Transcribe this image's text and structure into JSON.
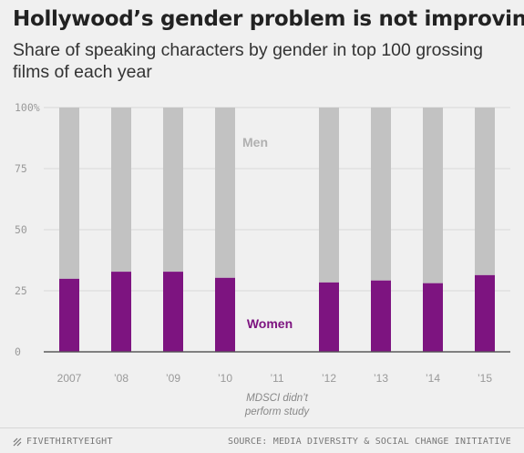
{
  "title": "Hollywood’s gender problem is not improving",
  "subtitle": "Share of speaking characters by gender in top 100 grossing films of each year",
  "footer": {
    "brand": "FIVETHIRTYEIGHT",
    "source": "SOURCE: MEDIA DIVERSITY & SOCIAL CHANGE INITIATIVE"
  },
  "colors": {
    "women": "#7d1480",
    "men": "#c2c2c2",
    "grid": "#d8d8d8",
    "tick_text": "#999999",
    "men_label": "#b0b0b0"
  },
  "chart_data": {
    "type": "bar",
    "stacked": true,
    "categories": [
      "2007",
      "’08",
      "’09",
      "’10",
      "’11",
      "’12",
      "’13",
      "’14",
      "’15"
    ],
    "series": [
      {
        "name": "Women",
        "values": [
          29.9,
          32.8,
          32.8,
          30.3,
          null,
          28.4,
          29.2,
          28.1,
          31.4
        ]
      },
      {
        "name": "Men",
        "values": [
          70.1,
          67.2,
          67.2,
          69.7,
          null,
          71.6,
          70.8,
          71.9,
          68.6
        ]
      }
    ],
    "ylim": [
      0,
      100
    ],
    "yticks": [
      "0",
      "25",
      "50",
      "75",
      "100%"
    ],
    "ytick_values": [
      0,
      25,
      50,
      75,
      100
    ],
    "grid": true,
    "annotations": {
      "missing_note": "MDSCI didn’t perform study"
    }
  }
}
